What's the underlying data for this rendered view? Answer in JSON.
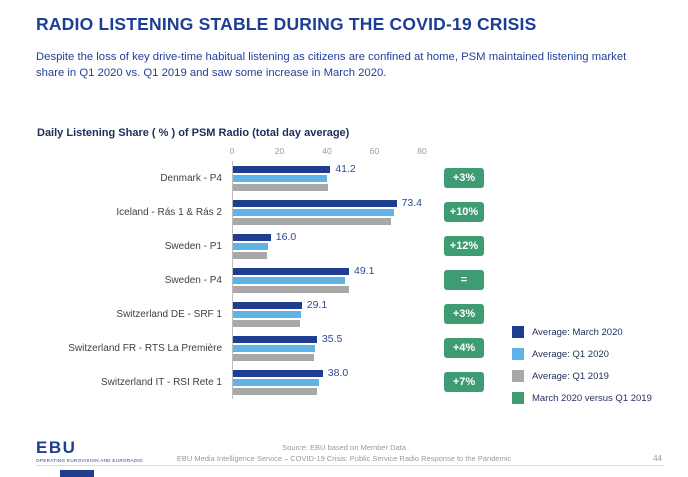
{
  "header": {
    "title": "RADIO LISTENING STABLE DURING THE COVID-19 CRISIS",
    "subtitle": "Despite the loss of key drive-time habitual listening as citizens are confined at home, PSM maintained listening market share in Q1 2020 vs. Q1 2019 and saw some increase in March 2020."
  },
  "chart_data": {
    "type": "bar",
    "orientation": "horizontal",
    "title": "Daily Listening Share ( % ) of PSM Radio (total day average)",
    "categories": [
      "Denmark - P4",
      "Iceland - Rás 1 & Rás 2",
      "Sweden - P1",
      "Sweden - P4",
      "Switzerland DE - SRF 1",
      "Switzerland FR - RTS La Première",
      "Switzerland IT - RSI Rete 1"
    ],
    "series": [
      {
        "name": "Average: March 2020",
        "color": "#1f3d91",
        "values": [
          41.2,
          73.4,
          16.0,
          49.1,
          29.1,
          35.5,
          38.0
        ]
      },
      {
        "name": "Average: Q1 2020",
        "color": "#5fb4e5",
        "values": [
          39.8,
          68.0,
          14.7,
          47.5,
          28.8,
          34.8,
          36.5
        ]
      },
      {
        "name": "Average: Q1 2019",
        "color": "#a8a8a8",
        "values": [
          40.0,
          66.7,
          14.3,
          49.0,
          28.3,
          34.1,
          35.5
        ]
      }
    ],
    "value_labels": [
      "41.2",
      "73.4",
      "16.0",
      "49.1",
      "29.1",
      "35.5",
      "38.0"
    ],
    "changes": [
      "+3%",
      "+10%",
      "+12%",
      "=",
      "+3%",
      "+4%",
      "+7%"
    ],
    "change_color": "#3e9c73",
    "xlim": [
      0,
      80
    ],
    "x_ticks": [
      0,
      20,
      40,
      60,
      80
    ],
    "grid": false,
    "legend_position": "right",
    "legend": [
      {
        "label": "Average: March 2020",
        "color": "#1f3d91"
      },
      {
        "label": "Average: Q1 2020",
        "color": "#5fb4e5"
      },
      {
        "label": "Average: Q1 2019",
        "color": "#a8a8a8"
      },
      {
        "label": "March 2020 versus Q1 2019",
        "color": "#3e9c73"
      }
    ]
  },
  "footer": {
    "logo_text": "EBU",
    "logo_tagline": "OPERATING EUROVISION AND EURORADIO",
    "source": "Source: EBU based on Member Data",
    "service": "EBU Media Intelligence Service – COVID-19 Crisis: Public Service Radio Response to the Pandemic",
    "page": "44"
  }
}
